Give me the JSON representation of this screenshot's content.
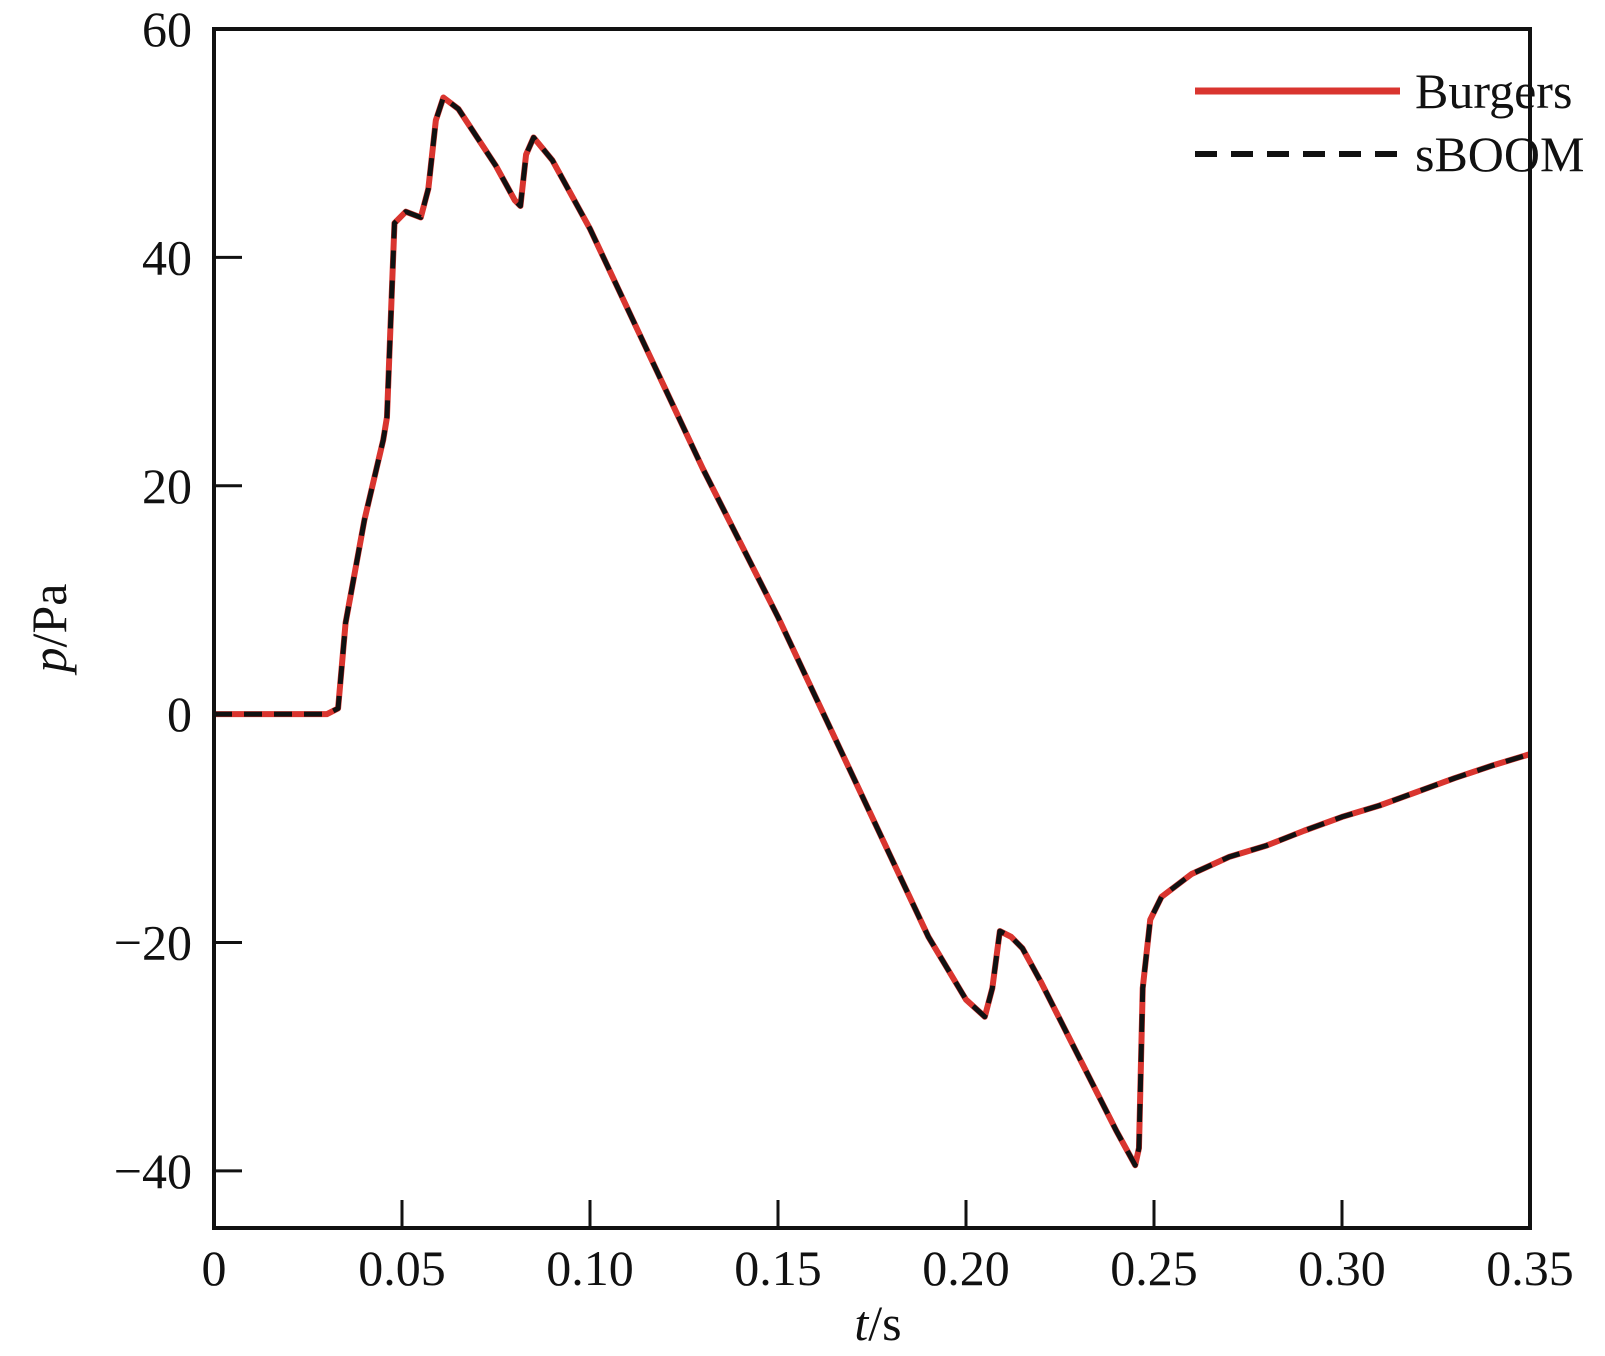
{
  "chart_data": {
    "type": "line",
    "x_label": {
      "symbol": "t",
      "unit": "/s"
    },
    "y_label": {
      "symbol": "p",
      "unit": "/Pa"
    },
    "x": [
      0,
      0.03,
      0.033,
      0.035,
      0.04,
      0.045,
      0.046,
      0.048,
      0.051,
      0.055,
      0.057,
      0.059,
      0.061,
      0.065,
      0.07,
      0.075,
      0.08,
      0.0815,
      0.083,
      0.085,
      0.09,
      0.1,
      0.11,
      0.12,
      0.13,
      0.14,
      0.15,
      0.16,
      0.17,
      0.18,
      0.19,
      0.2,
      0.205,
      0.207,
      0.209,
      0.212,
      0.215,
      0.22,
      0.23,
      0.24,
      0.245,
      0.246,
      0.247,
      0.249,
      0.252,
      0.26,
      0.27,
      0.28,
      0.29,
      0.3,
      0.31,
      0.32,
      0.33,
      0.34,
      0.35
    ],
    "series": [
      {
        "name": "Burgers",
        "color": "#d9352f",
        "linestyle": "solid",
        "values": [
          0,
          0,
          0.5,
          8,
          17,
          24,
          26,
          43,
          44,
          43.5,
          46,
          52,
          54,
          53,
          50.5,
          48,
          45,
          44.5,
          49,
          50.5,
          48.5,
          42.5,
          35.5,
          28.5,
          21.5,
          15,
          8.5,
          1.5,
          -5.5,
          -12.5,
          -19.5,
          -25,
          -26.5,
          -24,
          -19,
          -19.5,
          -20.5,
          -23.5,
          -30,
          -36.5,
          -39.5,
          -38,
          -24,
          -18,
          -16,
          -14,
          -12.5,
          -11.5,
          -10.2,
          -9,
          -8,
          -6.8,
          -5.6,
          -4.5,
          -3.5
        ]
      },
      {
        "name": "sBOOM",
        "color": "#111111",
        "linestyle": "dashed",
        "values": [
          0,
          0,
          0.5,
          8,
          17,
          24,
          26,
          43,
          44,
          43.5,
          46,
          52,
          54,
          53,
          50.5,
          48,
          45,
          44.5,
          49,
          50.5,
          48.5,
          42.5,
          35.5,
          28.5,
          21.5,
          15,
          8.5,
          1.5,
          -5.5,
          -12.5,
          -19.5,
          -25,
          -26.5,
          -24,
          -19,
          -19.5,
          -20.5,
          -23.5,
          -30,
          -36.5,
          -39.5,
          -38,
          -24,
          -18,
          -16,
          -14,
          -12.5,
          -11.5,
          -10.2,
          -9,
          -8,
          -6.8,
          -5.6,
          -4.5,
          -3.5
        ]
      }
    ],
    "xlim": [
      0,
      0.35
    ],
    "xticks": [
      0,
      0.05,
      {
        "value": 0.1,
        "label": "0.10"
      },
      0.15,
      {
        "value": 0.2,
        "label": "0.20"
      },
      0.25,
      {
        "value": 0.3,
        "label": "0.30"
      },
      0.35
    ],
    "ylim": [
      -45,
      60
    ],
    "yticks": [
      {
        "value": -40,
        "label": "−40"
      },
      {
        "value": -20,
        "label": "−20"
      },
      0,
      20,
      40,
      60
    ],
    "legend": "upper right",
    "grid": false
  }
}
